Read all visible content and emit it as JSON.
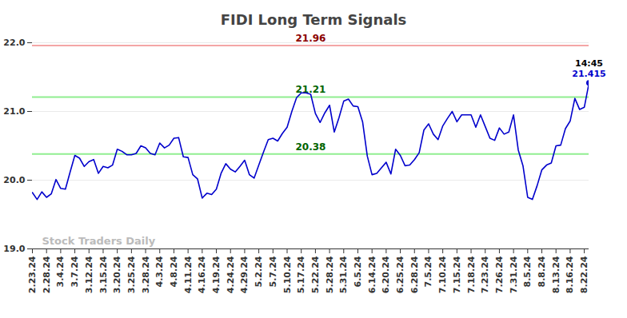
{
  "chart_data": {
    "type": "line",
    "title": "FIDI Long Term Signals",
    "color": "#0000cc",
    "categories": [
      "2.23.24",
      null,
      null,
      "2.28.24",
      null,
      null,
      "3.4.24",
      null,
      null,
      "3.7.24",
      null,
      null,
      "3.12.24",
      null,
      null,
      "3.15.24",
      null,
      null,
      "3.20.24",
      null,
      null,
      "3.25.24",
      null,
      null,
      "3.28.24",
      null,
      null,
      "4.3.24",
      null,
      null,
      "4.8.24",
      null,
      null,
      "4.11.24",
      null,
      null,
      "4.16.24",
      null,
      null,
      "4.19.24",
      null,
      null,
      "4.24.24",
      null,
      null,
      "4.29.24",
      null,
      null,
      "5.2.24",
      null,
      null,
      "5.7.24",
      null,
      null,
      "5.10.24",
      null,
      null,
      "5.17.24",
      null,
      null,
      "5.22.24",
      null,
      null,
      "5.28.24",
      null,
      null,
      "5.31.24",
      null,
      null,
      "6.5.24",
      null,
      null,
      "6.14.24",
      null,
      null,
      "6.20.24",
      null,
      null,
      "6.25.24",
      null,
      null,
      "6.28.24",
      null,
      null,
      "7.5.24",
      null,
      null,
      "7.10.24",
      null,
      null,
      "7.15.24",
      null,
      null,
      "7.18.24",
      null,
      null,
      "7.23.24",
      null,
      null,
      "7.26.24",
      null,
      null,
      "7.31.24",
      null,
      null,
      "8.5.24",
      null,
      null,
      "8.8.24",
      null,
      null,
      "8.13.24",
      null,
      null,
      "8.16.24",
      null,
      null,
      "8.22.24",
      null
    ],
    "values": [
      19.82,
      19.72,
      19.83,
      19.75,
      19.8,
      20.01,
      19.88,
      19.87,
      20.12,
      20.36,
      20.32,
      20.2,
      20.27,
      20.3,
      20.1,
      20.2,
      20.18,
      20.22,
      20.45,
      20.42,
      20.37,
      20.37,
      20.39,
      20.5,
      20.47,
      20.39,
      20.37,
      20.54,
      20.47,
      20.51,
      20.61,
      20.62,
      20.34,
      20.33,
      20.08,
      20.02,
      19.74,
      19.81,
      19.79,
      19.87,
      20.1,
      20.24,
      20.16,
      20.12,
      20.2,
      20.29,
      20.08,
      20.03,
      20.22,
      20.41,
      20.59,
      20.61,
      20.57,
      20.68,
      20.77,
      21.0,
      21.2,
      21.27,
      21.27,
      21.25,
      20.97,
      20.84,
      20.98,
      21.09,
      20.7,
      20.91,
      21.15,
      21.18,
      21.08,
      21.07,
      20.85,
      20.35,
      20.08,
      20.1,
      20.18,
      20.26,
      20.09,
      20.45,
      20.36,
      20.21,
      20.22,
      20.3,
      20.4,
      20.73,
      20.82,
      20.67,
      20.59,
      20.79,
      20.9,
      21.0,
      20.85,
      20.95,
      20.95,
      20.95,
      20.77,
      20.95,
      20.78,
      20.61,
      20.58,
      20.76,
      20.67,
      20.7,
      20.95,
      20.44,
      20.21,
      19.75,
      19.72,
      19.92,
      20.15,
      20.22,
      20.25,
      20.5,
      20.51,
      20.75,
      20.86,
      21.19,
      21.03,
      21.06,
      21.415
    ],
    "ylim": [
      19,
      22
    ],
    "yticks": [
      19,
      20,
      21,
      22
    ],
    "grid": true,
    "reference_lines": [
      {
        "value": 21.96,
        "color": "#f4a6a6",
        "label_color": "#8b0000"
      },
      {
        "value": 21.21,
        "color": "#90ee90",
        "label_color": "#006400"
      },
      {
        "value": 20.38,
        "color": "#90ee90",
        "label_color": "#006400"
      }
    ],
    "last_label": "14:45",
    "watermark": "Stock Traders Daily"
  }
}
